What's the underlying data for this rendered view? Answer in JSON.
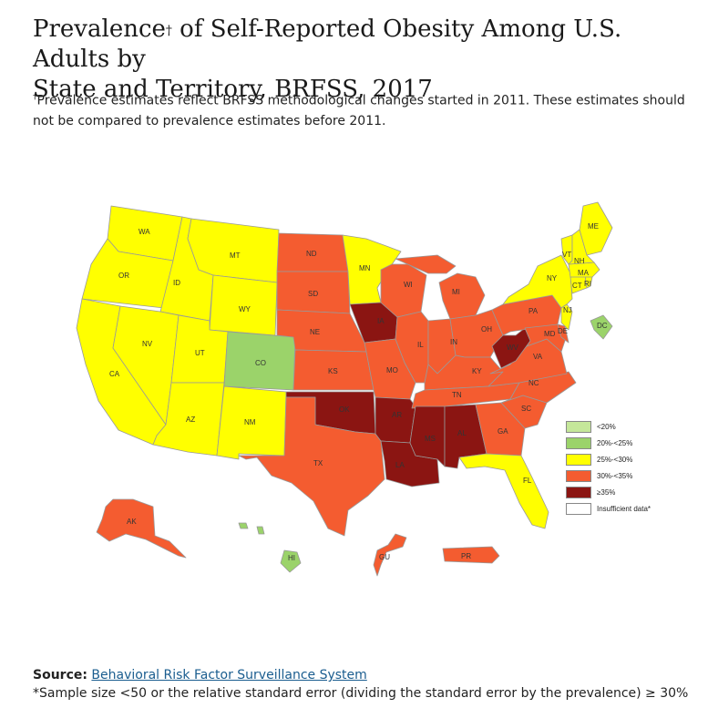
{
  "header": {
    "title_line1": "Prevalence",
    "title_mark": "†",
    "title_line1_rest": " of Self-Reported Obesity Among U.S. Adults by",
    "title_line2": "State and Territory, BRFSS, 2017",
    "note_mark": "†",
    "note_text": "Prevalence estimates reflect BRFSS methodological changes started in 2011. These estimates should not be compared to prevalence estimates before 2011."
  },
  "colors": {
    "lt20": "#c5e79a",
    "c20_25": "#9bd36a",
    "c25_30": "#ffff00",
    "c30_35": "#f45c30",
    "ge35": "#8b1512",
    "insufficient": "#ffffff",
    "border": "#999999"
  },
  "legend": [
    {
      "key": "lt20",
      "label": "<20%"
    },
    {
      "key": "c20_25",
      "label": "20%-<25%"
    },
    {
      "key": "c25_30",
      "label": "25%-<30%"
    },
    {
      "key": "c30_35",
      "label": "30%-<35%"
    },
    {
      "key": "ge35",
      "label": "≥35%"
    },
    {
      "key": "insufficient",
      "label": "Insufficient data*"
    }
  ],
  "states": {
    "WA": "c25_30",
    "OR": "c25_30",
    "CA": "c25_30",
    "ID": "c25_30",
    "NV": "c25_30",
    "MT": "c25_30",
    "WY": "c25_30",
    "UT": "c25_30",
    "AZ": "c25_30",
    "CO": "c20_25",
    "NM": "c25_30",
    "ND": "c30_35",
    "SD": "c30_35",
    "NE": "c30_35",
    "KS": "c30_35",
    "OK": "ge35",
    "TX": "c30_35",
    "MN": "c25_30",
    "IA": "ge35",
    "MO": "c30_35",
    "AR": "ge35",
    "LA": "ge35",
    "WI": "c30_35",
    "IL": "c30_35",
    "MI": "c30_35",
    "IN": "c30_35",
    "OH": "c30_35",
    "KY": "c30_35",
    "TN": "c30_35",
    "MS": "ge35",
    "AL": "ge35",
    "WV": "ge35",
    "GA": "c30_35",
    "FL": "c25_30",
    "SC": "c30_35",
    "NC": "c30_35",
    "VA": "c30_35",
    "PA": "c30_35",
    "NY": "c25_30",
    "ME": "c25_30",
    "VT": "c25_30",
    "NH": "c25_30",
    "MA": "c25_30",
    "CT": "c25_30",
    "RI": "c25_30",
    "NJ": "c25_30",
    "DE": "c30_35",
    "MD": "c30_35",
    "DC": "c20_25",
    "AK": "c30_35",
    "HI": "c20_25",
    "GU": "c30_35",
    "PR": "c30_35"
  },
  "footer": {
    "source_label": "Source:",
    "source_link": "Behavioral Risk Factor Surveillance System",
    "footnote": "*Sample size <50 or the relative standard error (dividing the standard error by the prevalence) ≥ 30%"
  }
}
